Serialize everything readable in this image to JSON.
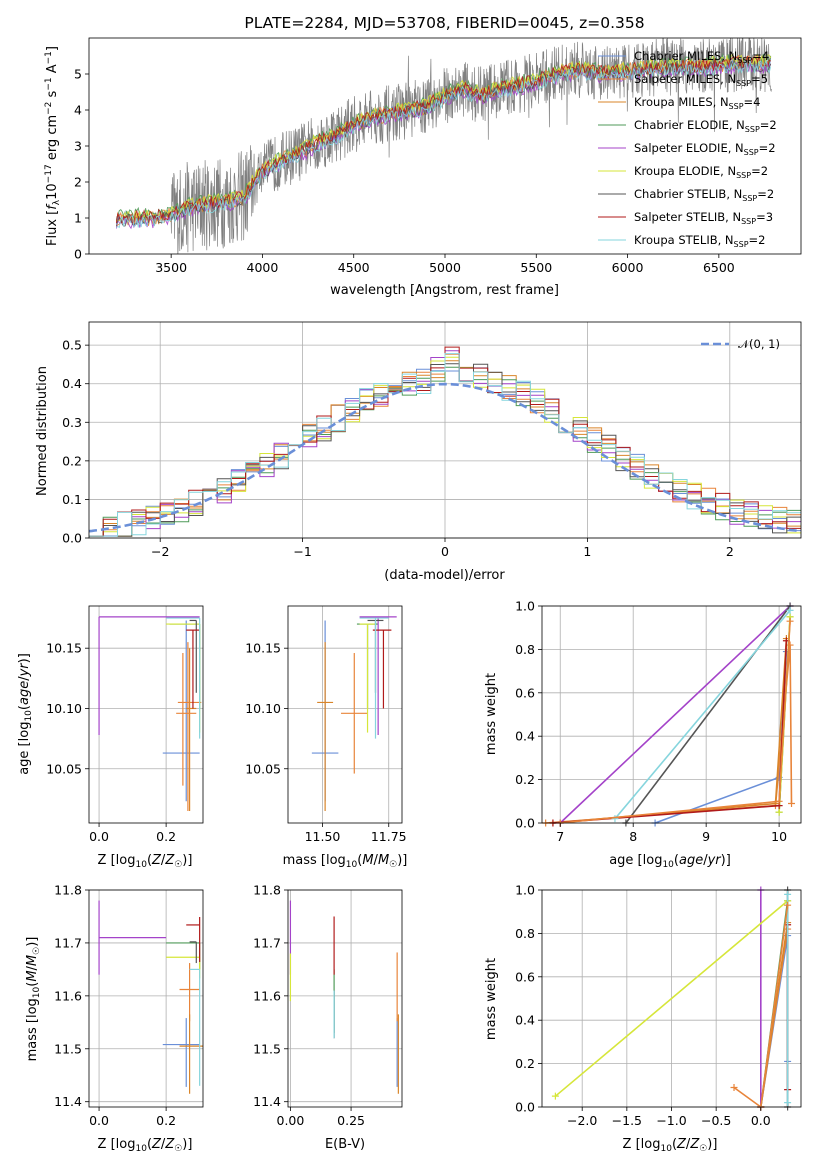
{
  "colors": {
    "c0": "#6a8fd8",
    "c1": "#e8843a",
    "c2": "#d9852a",
    "c3": "#4f9a58",
    "c4": "#a443c9",
    "c5": "#d6e63a",
    "c6": "#555555",
    "c7": "#b01a1a",
    "c8": "#86d5dd",
    "gauss": "#6a8fd8",
    "spec": "#808080",
    "grid": "#b0b0b0"
  },
  "chart_data": [
    {
      "id": "spectrum",
      "type": "line",
      "title": "PLATE=2284, MJD=53708, FIBERID=0045, z=0.358",
      "xlabel": "wavelength [Angstrom, rest frame]",
      "ylabel": "Flux [f_λ10⁻¹⁷ erg cm⁻² s⁻¹ A⁻¹]",
      "xlim": [
        3050,
        6950
      ],
      "ylim": [
        0,
        6
      ],
      "xticks": [
        3500,
        4000,
        4500,
        5000,
        5500,
        6000,
        6500
      ],
      "yticks": [
        0,
        1,
        2,
        3,
        4,
        5
      ],
      "grid": false,
      "legend": "top-right",
      "series": [
        {
          "name": "Chabrier MILES, N_SSP=4",
          "nssp": 4
        },
        {
          "name": "Salpeter MILES, N_SSP=5",
          "nssp": 5
        },
        {
          "name": "Kroupa MILES, N_SSP=4",
          "nssp": 4
        },
        {
          "name": "Chabrier ELODIE, N_SSP=2",
          "nssp": 2
        },
        {
          "name": "Salpeter ELODIE, N_SSP=2",
          "nssp": 2
        },
        {
          "name": "Kroupa ELODIE, N_SSP=2",
          "nssp": 2
        },
        {
          "name": "Chabrier STELIB, N_SSP=2",
          "nssp": 2
        },
        {
          "name": "Salpeter STELIB, N_SSP=3",
          "nssp": 3
        },
        {
          "name": "Kroupa STELIB, N_SSP=2",
          "nssp": 2
        }
      ],
      "model_continuum": {
        "x": [
          3200,
          3400,
          3500,
          3600,
          3700,
          3800,
          3900,
          3950,
          4000,
          4100,
          4200,
          4300,
          4400,
          4500,
          4600,
          4700,
          4800,
          4900,
          5000,
          5100,
          5200,
          5300,
          5400,
          5500,
          5600,
          5700,
          5800,
          5900,
          6000,
          6200,
          6400,
          6600,
          6800
        ],
        "y": [
          1.0,
          1.0,
          1.1,
          1.3,
          1.4,
          1.45,
          1.6,
          2.0,
          2.3,
          2.6,
          2.8,
          3.1,
          3.3,
          3.6,
          3.8,
          3.9,
          4.0,
          4.1,
          4.4,
          4.6,
          4.4,
          4.6,
          4.7,
          4.8,
          5.0,
          5.1,
          5.1,
          5.0,
          5.1,
          5.2,
          5.2,
          5.3,
          5.3
        ]
      }
    },
    {
      "id": "residuals",
      "type": "line",
      "xlabel": "(data-model)/error",
      "ylabel": "Normed distribution",
      "xlim": [
        -2.5,
        2.5
      ],
      "ylim": [
        0,
        0.56
      ],
      "xticks": [
        -2,
        -1,
        0,
        1,
        2
      ],
      "yticks": [
        0.0,
        0.1,
        0.2,
        0.3,
        0.4,
        0.5
      ],
      "grid": true,
      "legend": "top-right",
      "legend_label": "𝒩(0, 1)",
      "gaussian": {
        "mean": 0,
        "sigma": 1
      }
    },
    {
      "id": "age-vs-Z",
      "type": "scatter",
      "xlabel": "Z [log₁₀(Z/Z☉)]",
      "ylabel": "age  [log₁₀(age/yr)]",
      "xlim": [
        -0.03,
        0.31
      ],
      "ylim": [
        10.005,
        10.185
      ],
      "xticks": [
        0.0,
        0.2
      ],
      "yticks": [
        10.05,
        10.1,
        10.15
      ],
      "grid": true,
      "points": [
        {
          "s": 0,
          "x": 0.26,
          "y": 10.063,
          "xerr": [
            0.07,
            0.04
          ],
          "yerr": [
            0.04,
            0.11
          ]
        },
        {
          "s": 1,
          "x": 0.265,
          "y": 10.105,
          "xerr": [
            0.03,
            0.04
          ],
          "yerr": [
            0.09,
            0.05
          ]
        },
        {
          "s": 2,
          "x": 0.27,
          "y": 10.1,
          "xerr": [
            0.01,
            0.02
          ],
          "yerr": [
            0.085,
            0.05
          ]
        },
        {
          "s": 3,
          "x": 0.3,
          "y": 10.17,
          "xerr": [
            0.09,
            0.0
          ],
          "yerr": [
            0.07,
            0.0
          ]
        },
        {
          "s": 4,
          "x": 0.0,
          "y": 10.176,
          "xerr": [
            0.0,
            0.3
          ],
          "yerr": [
            0.098,
            0.0
          ]
        },
        {
          "s": 5,
          "x": 0.3,
          "y": 10.17,
          "xerr": [
            0.1,
            0.0
          ],
          "yerr": [
            0.09,
            0.0
          ]
        },
        {
          "s": 6,
          "x": 0.29,
          "y": 10.173,
          "xerr": [
            0.02,
            0.0
          ],
          "yerr": [
            0.06,
            0.0
          ]
        },
        {
          "s": 7,
          "x": 0.28,
          "y": 10.165,
          "xerr": [
            0.02,
            0.02
          ],
          "yerr": [
            0.065,
            0.0
          ]
        },
        {
          "s": 8,
          "x": 0.3,
          "y": 10.175,
          "xerr": [
            0.1,
            0.0
          ],
          "yerr": [
            0.1,
            0.0
          ]
        },
        {
          "s": 1,
          "x": 0.25,
          "y": 10.096,
          "xerr": [
            0.02,
            0.04
          ],
          "yerr": [
            0.06,
            0.05
          ]
        }
      ]
    },
    {
      "id": "age-vs-mass",
      "type": "scatter",
      "xlabel": "mass [log₁₀(M/M☉)]",
      "ylabel": "",
      "xlim": [
        11.37,
        11.8
      ],
      "ylim": [
        10.005,
        10.185
      ],
      "xticks": [
        11.5,
        11.75
      ],
      "yticks": [
        10.05,
        10.1,
        10.15
      ],
      "grid": true,
      "points": [
        {
          "s": 0,
          "x": 11.51,
          "y": 10.063,
          "xerr": [
            0.05,
            0.05
          ],
          "yerr": [
            0.04,
            0.11
          ]
        },
        {
          "s": 1,
          "x": 11.62,
          "y": 10.096,
          "xerr": [
            0.05,
            0.05
          ],
          "yerr": [
            0.05,
            0.05
          ]
        },
        {
          "s": 2,
          "x": 11.51,
          "y": 10.105,
          "xerr": [
            0.03,
            0.03
          ],
          "yerr": [
            0.09,
            0.05
          ]
        },
        {
          "s": 3,
          "x": 11.67,
          "y": 10.17,
          "xerr": [
            0.04,
            0.04
          ],
          "yerr": [
            0.07,
            0.0
          ]
        },
        {
          "s": 4,
          "x": 11.71,
          "y": 10.176,
          "xerr": [
            0.07,
            0.07
          ],
          "yerr": [
            0.098,
            0.0
          ]
        },
        {
          "s": 5,
          "x": 11.67,
          "y": 10.17,
          "xerr": [
            0.03,
            0.03
          ],
          "yerr": [
            0.09,
            0.0
          ]
        },
        {
          "s": 6,
          "x": 11.7,
          "y": 10.173,
          "xerr": [
            0.03,
            0.03
          ],
          "yerr": [
            0.06,
            0.0
          ]
        },
        {
          "s": 7,
          "x": 11.73,
          "y": 10.165,
          "xerr": [
            0.04,
            0.03
          ],
          "yerr": [
            0.065,
            0.0
          ]
        },
        {
          "s": 8,
          "x": 11.7,
          "y": 10.175,
          "xerr": [
            0.06,
            0.05
          ],
          "yerr": [
            0.1,
            0.0
          ]
        }
      ]
    },
    {
      "id": "weight-vs-age",
      "type": "line",
      "xlabel": "age  [log₁₀(age/yr)]",
      "ylabel": "mass weight",
      "xlim": [
        6.75,
        10.3
      ],
      "ylim": [
        0,
        1
      ],
      "xticks": [
        7,
        8,
        9,
        10
      ],
      "yticks": [
        0.0,
        0.2,
        0.4,
        0.6,
        0.8,
        1.0
      ],
      "grid": true,
      "series": [
        {
          "s": 0,
          "x": [
            8.3,
            10.0,
            10.1
          ],
          "y": [
            0.0,
            0.21,
            0.79
          ]
        },
        {
          "s": 1,
          "x": [
            6.8,
            9.95,
            10.15,
            10.17
          ],
          "y": [
            0.0,
            0.08,
            0.82,
            0.09
          ]
        },
        {
          "s": 2,
          "x": [
            6.9,
            9.95,
            10.1
          ],
          "y": [
            0.0,
            0.09,
            0.85
          ]
        },
        {
          "s": 3,
          "x": [
            10.0,
            10.15
          ],
          "y": [
            0.05,
            0.95
          ]
        },
        {
          "s": 4,
          "x": [
            7.0,
            10.15
          ],
          "y": [
            0.0,
            1.0
          ]
        },
        {
          "s": 5,
          "x": [
            10.0,
            10.15
          ],
          "y": [
            0.05,
            0.95
          ]
        },
        {
          "s": 6,
          "x": [
            7.9,
            10.15
          ],
          "y": [
            0.0,
            1.0
          ]
        },
        {
          "s": 7,
          "x": [
            6.9,
            10.0,
            10.1
          ],
          "y": [
            0.0,
            0.08,
            0.84
          ]
        },
        {
          "s": 8,
          "x": [
            7.75,
            10.15
          ],
          "y": [
            0.02,
            0.98
          ]
        },
        {
          "s": 1,
          "x": [
            7.0,
            10.0,
            10.15
          ],
          "y": [
            0.0,
            0.1,
            0.93
          ]
        }
      ]
    },
    {
      "id": "mass-vs-Z",
      "type": "scatter",
      "xlabel": "Z [log₁₀(Z/Z☉)]",
      "ylabel": "mass [log₁₀(M/M☉)]",
      "xlim": [
        -0.03,
        0.31
      ],
      "ylim": [
        11.39,
        11.8
      ],
      "xticks": [
        0.0,
        0.2
      ],
      "yticks": [
        11.4,
        11.5,
        11.6,
        11.7,
        11.8
      ],
      "grid": true,
      "points": [
        {
          "s": 0,
          "x": 0.26,
          "y": 11.508,
          "xerr": [
            0.07,
            0.04
          ],
          "yerr": [
            0.08,
            0.05
          ]
        },
        {
          "s": 1,
          "x": 0.27,
          "y": 11.612,
          "xerr": [
            0.03,
            0.03
          ],
          "yerr": [
            0.06,
            0.05
          ]
        },
        {
          "s": 2,
          "x": 0.27,
          "y": 11.505,
          "xerr": [
            0.03,
            0.04
          ],
          "yerr": [
            0.09,
            0.06
          ]
        },
        {
          "s": 3,
          "x": 0.3,
          "y": 11.7,
          "xerr": [
            0.1,
            0.0
          ],
          "yerr": [
            0.05,
            0.0
          ]
        },
        {
          "s": 4,
          "x": 0.0,
          "y": 11.71,
          "xerr": [
            0.0,
            0.2
          ],
          "yerr": [
            0.07,
            0.07
          ]
        },
        {
          "s": 5,
          "x": 0.3,
          "y": 11.673,
          "xerr": [
            0.1,
            0.0
          ],
          "yerr": [
            0.04,
            0.0
          ]
        },
        {
          "s": 6,
          "x": 0.29,
          "y": 11.702,
          "xerr": [
            0.02,
            0.0
          ],
          "yerr": [
            0.04,
            0.0
          ]
        },
        {
          "s": 7,
          "x": 0.3,
          "y": 11.734,
          "xerr": [
            0.04,
            0.0
          ],
          "yerr": [
            0.07,
            0.015
          ]
        },
        {
          "s": 8,
          "x": 0.3,
          "y": 11.65,
          "xerr": [
            0.03,
            0.0
          ],
          "yerr": [
            0.22,
            0.0
          ]
        }
      ]
    },
    {
      "id": "mass-vs-ebv",
      "type": "scatter",
      "xlabel": "E(B-V)",
      "ylabel": "",
      "xlim": [
        -0.01,
        0.46
      ],
      "ylim": [
        11.39,
        11.8
      ],
      "xticks": [
        0.0,
        0.25
      ],
      "yticks": [
        11.4,
        11.5,
        11.6,
        11.7,
        11.8
      ],
      "grid": true,
      "points": [
        {
          "s": 0,
          "x": 0.44,
          "y": 11.508,
          "xerr": [
            0,
            0
          ],
          "yerr": [
            0.08,
            0.05
          ]
        },
        {
          "s": 1,
          "x": 0.44,
          "y": 11.612,
          "xerr": [
            0,
            0
          ],
          "yerr": [
            0.06,
            0.07
          ]
        },
        {
          "s": 2,
          "x": 0.445,
          "y": 11.505,
          "xerr": [
            0,
            0
          ],
          "yerr": [
            0.09,
            0.06
          ]
        },
        {
          "s": 3,
          "x": 0.18,
          "y": 11.6,
          "xerr": [
            0,
            0
          ],
          "yerr": [
            0.07,
            0.05
          ]
        },
        {
          "s": 4,
          "x": 0.0,
          "y": 11.71,
          "xerr": [
            0,
            0
          ],
          "yerr": [
            0.07,
            0.07
          ]
        },
        {
          "s": 5,
          "x": 0.0,
          "y": 11.64,
          "xerr": [
            0,
            0
          ],
          "yerr": [
            0.05,
            0.04
          ]
        },
        {
          "s": 6,
          "x": 0.18,
          "y": 11.57,
          "xerr": [
            0,
            0
          ],
          "yerr": [
            0.05,
            0.04
          ]
        },
        {
          "s": 7,
          "x": 0.18,
          "y": 11.7,
          "xerr": [
            0,
            0
          ],
          "yerr": [
            0.06,
            0.05
          ]
        },
        {
          "s": 8,
          "x": 0.18,
          "y": 11.57,
          "xerr": [
            0,
            0
          ],
          "yerr": [
            0.05,
            0.04
          ]
        }
      ]
    },
    {
      "id": "weight-vs-Z",
      "type": "line",
      "xlabel": "Z [log₁₀(Z/Z☉)]",
      "ylabel": "mass weight",
      "xlim": [
        -2.45,
        0.45
      ],
      "ylim": [
        0,
        1
      ],
      "xticks": [
        -2.0,
        -1.5,
        -1.0,
        -0.5,
        0.0
      ],
      "yticks": [
        0.0,
        0.2,
        0.4,
        0.6,
        0.8,
        1.0
      ],
      "grid": true,
      "series": [
        {
          "s": 0,
          "x": [
            0.0,
            0.3,
            0.3
          ],
          "y": [
            0.0,
            0.79,
            0.21
          ]
        },
        {
          "s": 1,
          "x": [
            -0.3,
            0.0,
            0.3
          ],
          "y": [
            0.09,
            0.0,
            0.82
          ]
        },
        {
          "s": 2,
          "x": [
            0.0,
            0.3
          ],
          "y": [
            0.0,
            0.85
          ]
        },
        {
          "s": 3,
          "x": [
            0.0,
            0.3
          ],
          "y": [
            0.0,
            0.95
          ]
        },
        {
          "s": 4,
          "x": [
            0.0,
            0.0
          ],
          "y": [
            0.0,
            1.0
          ]
        },
        {
          "s": 5,
          "x": [
            -2.3,
            0.3
          ],
          "y": [
            0.05,
            0.95
          ]
        },
        {
          "s": 6,
          "x": [
            0.3,
            0.3
          ],
          "y": [
            0.0,
            1.0
          ]
        },
        {
          "s": 7,
          "x": [
            0.3,
            0.3
          ],
          "y": [
            0.08,
            0.84
          ]
        },
        {
          "s": 8,
          "x": [
            0.3,
            0.3
          ],
          "y": [
            0.02,
            0.98
          ]
        },
        {
          "s": 1,
          "x": [
            0.0,
            0.3
          ],
          "y": [
            0.0,
            0.93
          ]
        }
      ]
    }
  ]
}
